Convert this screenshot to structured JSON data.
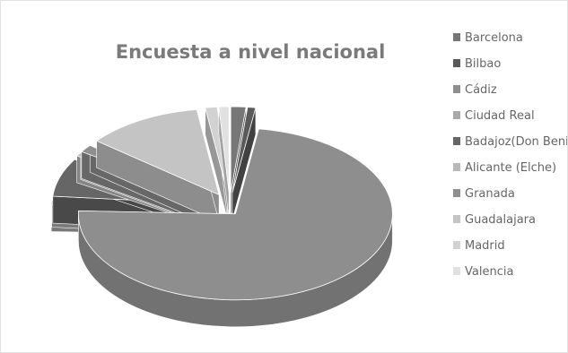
{
  "chart_data": {
    "type": "pie",
    "style": "3d-exploded",
    "title": "Encuesta a  nivel nacional",
    "legend_position": "right",
    "categories": [
      "Barcelona",
      "Bilbao",
      "Cádiz",
      "Ciudad Real",
      "Badajoz(Don Benit",
      "Alicante (Elche)",
      "Granada",
      "Guadalajara",
      "Madrid",
      "Valencia"
    ],
    "values": [
      1.5,
      0.8,
      71,
      0.8,
      7,
      0.7,
      1.4,
      11.6,
      1.2,
      1.0
    ],
    "colors": [
      "#777777",
      "#5a5a5a",
      "#8e8e8e",
      "#aaaaaa",
      "#666666",
      "#b9b9b9",
      "#8f8f8f",
      "#c4c4c4",
      "#d2d2d2",
      "#e1e1e1"
    ],
    "start_angle_deg": 0
  }
}
